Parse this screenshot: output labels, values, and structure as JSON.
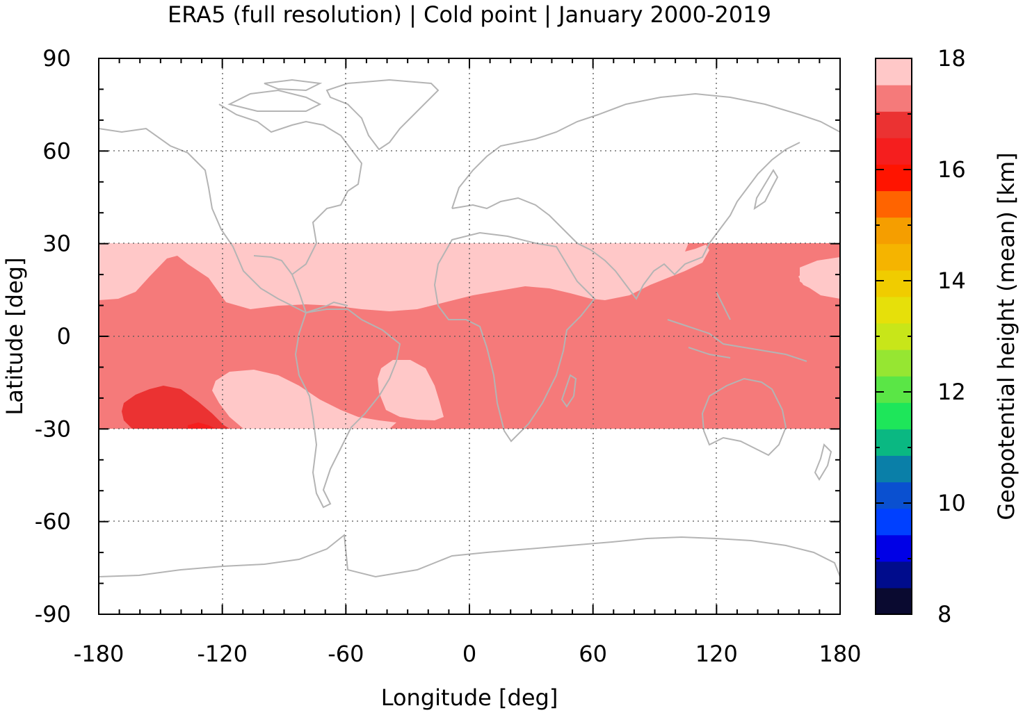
{
  "chart_data": {
    "type": "heatmap",
    "title": "ERA5 (full resolution) | Cold point | January 2000-2019",
    "xlabel": "Longitude [deg]",
    "ylabel": "Latitude [deg]",
    "colorbar_label": "Geopotential height (mean) [km]",
    "xlim": [
      -180,
      180
    ],
    "ylim": [
      -90,
      90
    ],
    "x_ticks": [
      -180,
      -120,
      -60,
      0,
      60,
      120,
      180
    ],
    "x_tick_labels": [
      "-180",
      "-120",
      "-60",
      "0",
      "60",
      "120",
      "180"
    ],
    "y_ticks": [
      90,
      60,
      30,
      0,
      -30,
      -60,
      -90
    ],
    "y_tick_labels": [
      "90",
      "60",
      "30",
      "0",
      "-30",
      "-60",
      "-90"
    ],
    "colorbar_range": [
      8,
      18
    ],
    "colorbar_ticks": [
      18,
      16,
      14,
      12,
      10,
      8
    ],
    "colorbar_tick_labels": [
      "18",
      "16",
      "14",
      "12",
      "10",
      "8"
    ],
    "colorbar_colors": [
      "#0a0a30",
      "#000c8c",
      "#0000e6",
      "#0040ff",
      "#0a50d0",
      "#0a7fa8",
      "#0ab882",
      "#1ee65a",
      "#5ae646",
      "#96e632",
      "#c8e619",
      "#e6e00a",
      "#f0cc00",
      "#f5b400",
      "#f59e00",
      "#ff6400",
      "#ff1400",
      "#f51e1e",
      "#eb3232",
      "#f57a7a",
      "#ffc8c8"
    ],
    "data_lat_range": [
      -30,
      30
    ],
    "grid": true,
    "regions": [
      {
        "level_km": 17.5,
        "color": "#ffc8c8",
        "description_level": "17.5-18"
      },
      {
        "level_km": 17.0,
        "color": "#f57a7a",
        "description_level": "17-17.5"
      },
      {
        "level_km": 16.5,
        "color": "#eb3232",
        "description_level": "16.5-17"
      },
      {
        "level_km": 16.0,
        "color": "#f51e1e",
        "description_level": "16-16.5"
      }
    ],
    "coastline_color": "#b4b4b4"
  }
}
